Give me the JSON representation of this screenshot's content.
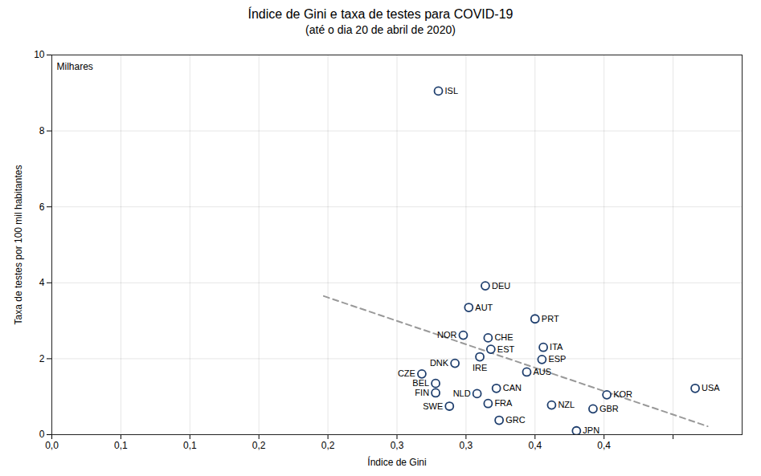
{
  "chart_data": {
    "type": "scatter",
    "title": "Índice de Gini e taxa de testes para  COVID-19",
    "subtitle": "(até o dia 20 de abril de 2020)",
    "xlabel": "Índice de Gini",
    "ylabel": "Taxa de testes por 100 mil habitantes",
    "annotation": "Milhares",
    "labels": [
      "ISL",
      "AUT",
      "NOR",
      "DEU",
      "DNK",
      "CZE",
      "BEL",
      "FIN",
      "SWE",
      "CHE",
      "IRE",
      "EST",
      "NLD",
      "FRA",
      "GRC",
      "CAN",
      "AUS",
      "ESP",
      "ITA",
      "PRT",
      "NZL",
      "JPN",
      "GBR",
      "KOR",
      "USA"
    ],
    "x": [
      0.28,
      0.302,
      0.298,
      0.314,
      0.292,
      0.268,
      0.278,
      0.278,
      0.288,
      0.316,
      0.31,
      0.318,
      0.308,
      0.316,
      0.324,
      0.322,
      0.344,
      0.355,
      0.356,
      0.35,
      0.362,
      0.38,
      0.392,
      0.402,
      0.466
    ],
    "values": [
      9.05,
      3.35,
      2.62,
      3.92,
      1.88,
      1.6,
      1.35,
      1.1,
      0.75,
      2.55,
      2.05,
      2.25,
      1.08,
      0.82,
      0.38,
      1.22,
      1.65,
      1.98,
      2.3,
      3.05,
      0.78,
      0.1,
      0.68,
      1.05,
      1.22
    ],
    "color": "#1f3f6e",
    "marker": "circle",
    "trend_line": {
      "x": [
        0.197,
        0.475
      ],
      "values": [
        3.65,
        0.22
      ],
      "color": "#999999",
      "line_style": "dashed"
    },
    "xlim": [
      0.0,
      0.5
    ],
    "ylim": [
      0,
      10
    ],
    "xticks": [
      {
        "value": 0.0,
        "label": "0,0"
      },
      {
        "value": 0.05,
        "label": "0,1"
      },
      {
        "value": 0.1,
        "label": "0,1"
      },
      {
        "value": 0.15,
        "label": "0,2"
      },
      {
        "value": 0.2,
        "label": "0,2"
      },
      {
        "value": 0.25,
        "label": "0,3"
      },
      {
        "value": 0.3,
        "label": "0,3"
      },
      {
        "value": 0.35,
        "label": "0,4"
      },
      {
        "value": 0.4,
        "label": "0,4"
      },
      {
        "value": 0.45,
        "label": ""
      }
    ],
    "yticks": [
      0,
      2,
      4,
      6,
      8,
      10
    ],
    "grid": true
  }
}
